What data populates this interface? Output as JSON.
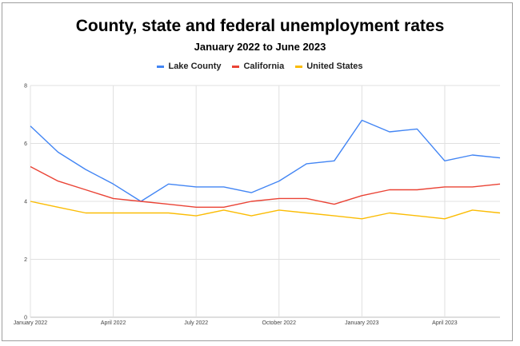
{
  "chart_data": {
    "type": "line",
    "title": "County, state and federal unemployment rates",
    "subtitle": "January 2022 to June 2023",
    "xlabel": "",
    "ylabel": "",
    "ylim": [
      0,
      8
    ],
    "yticks": [
      0,
      2,
      4,
      6,
      8
    ],
    "grid": true,
    "legend_position": "top",
    "x": [
      "Jan 2022",
      "Feb 2022",
      "Mar 2022",
      "Apr 2022",
      "May 2022",
      "Jun 2022",
      "Jul 2022",
      "Aug 2022",
      "Sep 2022",
      "Oct 2022",
      "Nov 2022",
      "Dec 2022",
      "Jan 2023",
      "Feb 2023",
      "Mar 2023",
      "Apr 2023",
      "May 2023",
      "Jun 2023"
    ],
    "xticks": [
      {
        "index": 0,
        "label": "January 2022"
      },
      {
        "index": 3,
        "label": "April 2022"
      },
      {
        "index": 6,
        "label": "July 2022"
      },
      {
        "index": 9,
        "label": "October 2022"
      },
      {
        "index": 12,
        "label": "January 2023"
      },
      {
        "index": 15,
        "label": "April 2023"
      }
    ],
    "series": [
      {
        "name": "Lake County",
        "color": "#4285f4",
        "values": [
          6.6,
          5.7,
          5.1,
          4.6,
          4.0,
          4.6,
          4.5,
          4.5,
          4.3,
          4.7,
          5.3,
          5.4,
          6.8,
          6.4,
          6.5,
          5.4,
          5.6,
          5.5
        ]
      },
      {
        "name": "California",
        "color": "#ea4335",
        "values": [
          5.2,
          4.7,
          4.4,
          4.1,
          4.0,
          3.9,
          3.8,
          3.8,
          4.0,
          4.1,
          4.1,
          3.9,
          4.2,
          4.4,
          4.4,
          4.5,
          4.5,
          4.6
        ]
      },
      {
        "name": "United States",
        "color": "#fbbc04",
        "values": [
          4.0,
          3.8,
          3.6,
          3.6,
          3.6,
          3.6,
          3.5,
          3.7,
          3.5,
          3.7,
          3.6,
          3.5,
          3.4,
          3.6,
          3.5,
          3.4,
          3.7,
          3.6
        ]
      }
    ]
  }
}
